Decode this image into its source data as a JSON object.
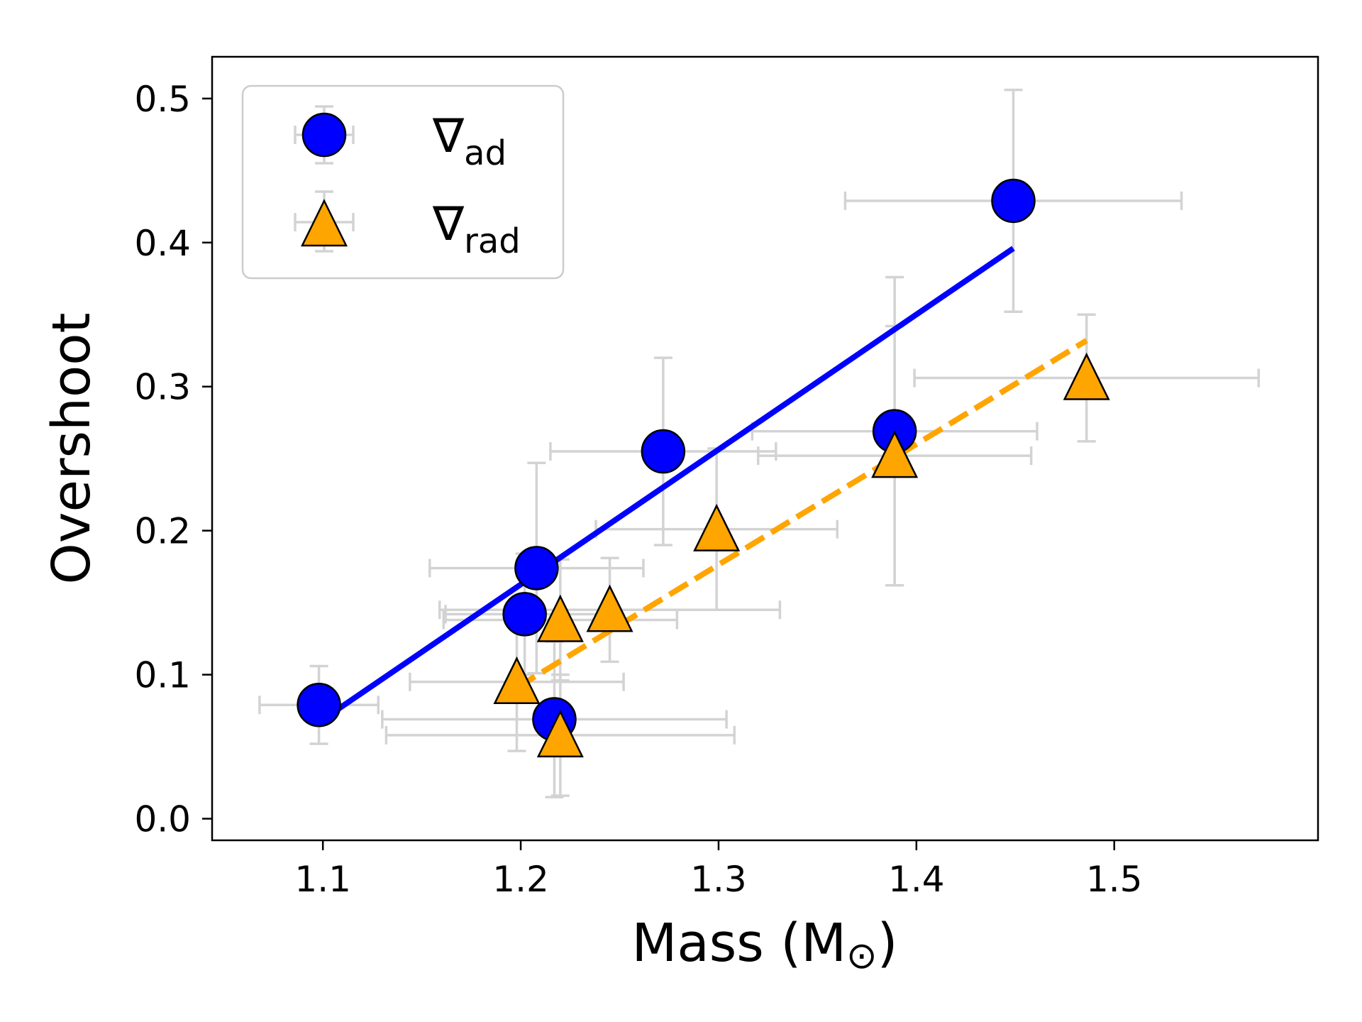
{
  "chart_data": {
    "type": "scatter",
    "title": "",
    "xlabel": {
      "text": "Mass (M",
      "symbol": "⊙",
      "close": ")"
    },
    "ylabel": "Overshoot",
    "xlim": [
      1.044,
      1.603
    ],
    "ylim": [
      -0.015,
      0.529
    ],
    "xticks": [
      {
        "value": 1.1,
        "label": "1.1"
      },
      {
        "value": 1.2,
        "label": "1.2"
      },
      {
        "value": 1.3,
        "label": "1.3"
      },
      {
        "value": 1.4,
        "label": "1.4"
      },
      {
        "value": 1.5,
        "label": "1.5"
      }
    ],
    "yticks": [
      {
        "value": 0.0,
        "label": "0.0"
      },
      {
        "value": 0.1,
        "label": "0.1"
      },
      {
        "value": 0.2,
        "label": "0.2"
      },
      {
        "value": 0.3,
        "label": "0.3"
      },
      {
        "value": 0.4,
        "label": "0.4"
      },
      {
        "value": 0.5,
        "label": "0.5"
      }
    ],
    "grid": false,
    "legend_position": "top-left",
    "errorbar_color": "#d3d3d3",
    "series": [
      {
        "name": "∇ad",
        "legend": {
          "symbol": "∇",
          "subscript": "ad"
        },
        "marker": "circle",
        "color": "#0000ff",
        "edge": "#000000",
        "points": [
          {
            "x": 1.098,
            "y": 0.079,
            "xerr": 0.03,
            "yerr": 0.027
          },
          {
            "x": 1.202,
            "y": 0.142,
            "xerr": 0.04,
            "yerr": 0.042
          },
          {
            "x": 1.208,
            "y": 0.174,
            "xerr": 0.054,
            "yerr": 0.073
          },
          {
            "x": 1.217,
            "y": 0.069,
            "xerr": 0.087,
            "yerr": 0.054
          },
          {
            "x": 1.272,
            "y": 0.255,
            "xerr": 0.057,
            "yerr": 0.065
          },
          {
            "x": 1.389,
            "y": 0.269,
            "xerr": 0.072,
            "yerr": 0.107
          },
          {
            "x": 1.449,
            "y": 0.429,
            "xerr": 0.085,
            "yerr": 0.077
          }
        ],
        "fit": {
          "x": [
            1.098,
            1.449
          ],
          "y": [
            0.067,
            0.396
          ],
          "style": "solid"
        }
      },
      {
        "name": "∇rad",
        "legend": {
          "symbol": "∇",
          "subscript": "rad"
        },
        "marker": "triangle",
        "color": "#ffa500",
        "edge": "#000000",
        "points": [
          {
            "x": 1.198,
            "y": 0.095,
            "xerr": 0.054,
            "yerr": 0.048
          },
          {
            "x": 1.22,
            "y": 0.138,
            "xerr": 0.059,
            "yerr": 0.042
          },
          {
            "x": 1.22,
            "y": 0.058,
            "xerr": 0.088,
            "yerr": 0.042
          },
          {
            "x": 1.245,
            "y": 0.145,
            "xerr": 0.086,
            "yerr": 0.036
          },
          {
            "x": 1.299,
            "y": 0.201,
            "xerr": 0.061,
            "yerr": 0.056
          },
          {
            "x": 1.389,
            "y": 0.252,
            "xerr": 0.069,
            "yerr": 0.09
          },
          {
            "x": 1.486,
            "y": 0.306,
            "xerr": 0.087,
            "yerr": 0.044
          }
        ],
        "fit": {
          "x": [
            1.198,
            1.486
          ],
          "y": [
            0.091,
            0.332
          ],
          "style": "dashed"
        }
      }
    ]
  }
}
